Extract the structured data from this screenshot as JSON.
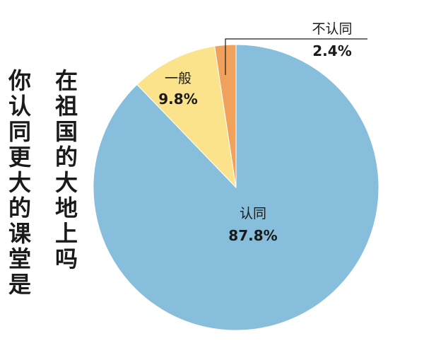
{
  "title_lines": [
    "你认同更大的课堂是",
    "在祖国的大地上吗"
  ],
  "chart_data": {
    "type": "pie",
    "title": "你认同更大的课堂是在祖国的大地上吗",
    "slices": [
      {
        "label": "认同",
        "value": 87.8,
        "value_label": "87.8%",
        "color": "#86bedb"
      },
      {
        "label": "一般",
        "value": 9.8,
        "value_label": "9.8%",
        "color": "#fbe38c"
      },
      {
        "label": "不认同",
        "value": 2.4,
        "value_label": "2.4%",
        "color": "#f0a25d"
      }
    ],
    "start": "12 o'clock",
    "direction": "clockwise"
  }
}
